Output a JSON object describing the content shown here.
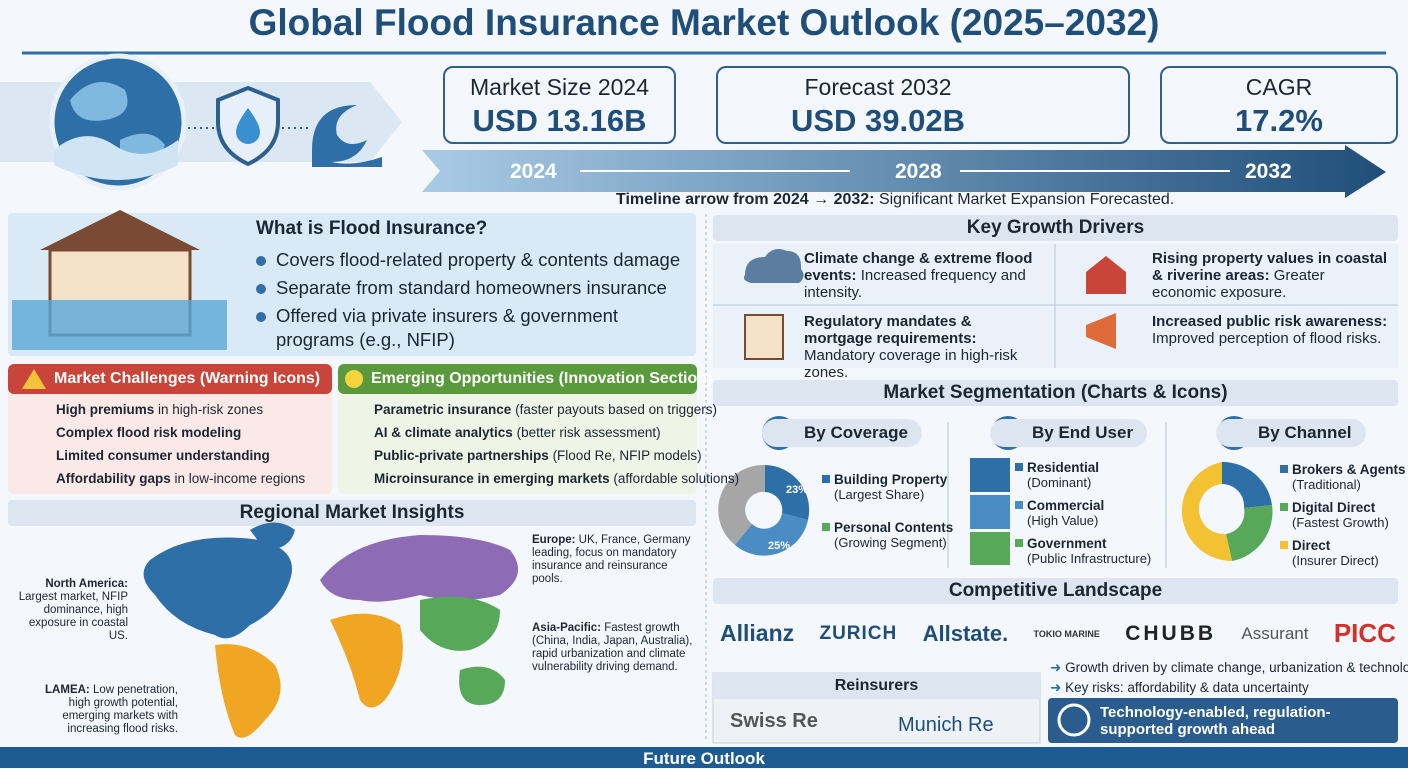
{
  "header": {
    "title": "Global Flood Insurance Market Outlook (2025–2032)"
  },
  "kpis": [
    {
      "label": "Market Size 2024",
      "value": "USD 13.16B"
    },
    {
      "label": "Forecast 2032",
      "value": "USD 39.02B"
    },
    {
      "label": "CAGR",
      "value": "17.2%"
    }
  ],
  "timeline": {
    "years": [
      "2024",
      "2028",
      "2032"
    ],
    "caption_bold": "Timeline arrow from 2024 → 2032:",
    "caption": "Significant Market Expansion Forecasted."
  },
  "definition": {
    "title": "What is Flood Insurance?",
    "bullets": [
      "Covers flood-related property & contents damage",
      "Separate from standard homeowners insurance",
      "Offered via private insurers & government programs (e.g., NFIP)"
    ]
  },
  "challenges": {
    "title": "Market Challenges (Warning Icons)",
    "items": [
      {
        "bold": "High premiums",
        "text": "in high-risk zones"
      },
      {
        "bold": "Complex flood risk modeling"
      },
      {
        "bold": "Limited consumer understanding"
      },
      {
        "bold": "Affordability gaps",
        "text": "in low-income regions"
      }
    ]
  },
  "opportunities": {
    "title": "Emerging Opportunities (Innovation Section)",
    "items": [
      {
        "bold": "Parametric insurance",
        "text": "(faster payouts based on triggers)"
      },
      {
        "bold": "AI & climate analytics",
        "text": "(better risk assessment)"
      },
      {
        "bold": "Public-private partnerships",
        "text": "(Flood Re, NFIP models)"
      },
      {
        "bold": "Microinsurance in emerging markets",
        "text": "(affordable solutions)"
      }
    ]
  },
  "regional": {
    "title": "Regional Market Insights",
    "regions": [
      {
        "name": "North America:",
        "text": "Largest market, NFIP dominance, high exposure in coastal US."
      },
      {
        "name": "Europe:",
        "text": "UK, France, Germany leading, focus on mandatory insurance and reinsurance pools."
      },
      {
        "name": "Asia-Pacific:",
        "text": "Fastest growth (China, India, Japan, Australia), rapid urbanization and climate vulnerability driving demand."
      },
      {
        "name": "LAMEA:",
        "text": "Low penetration, high growth potential, emerging markets with increasing flood risks."
      }
    ]
  },
  "drivers": {
    "title": "Key Growth Drivers",
    "items": [
      {
        "bold": "Climate change & extreme flood events:",
        "text": "Increased frequency and intensity."
      },
      {
        "bold": "Rising property values in coastal & riverine areas:",
        "text": "Greater economic exposure."
      },
      {
        "bold": "Regulatory mandates & mortgage requirements:",
        "text": "Mandatory coverage in high-risk zones."
      },
      {
        "bold": "Increased public risk awareness:",
        "text": "Improved perception of flood risks."
      }
    ]
  },
  "segmentation": {
    "title": "Market Segmentation (Charts & Icons)",
    "groups": [
      {
        "title": "By Coverage",
        "chart_labels": [
          "23%",
          "25%"
        ],
        "items": [
          {
            "name": "Building Property",
            "note": "(Largest Share)"
          },
          {
            "name": "Personal Contents",
            "note": "(Growing Segment)"
          }
        ]
      },
      {
        "title": "By End User",
        "items": [
          {
            "name": "Residential",
            "note": "(Dominant)"
          },
          {
            "name": "Commercial",
            "note": "(High Value)"
          },
          {
            "name": "Government",
            "note": "(Public Infrastructure)"
          }
        ]
      },
      {
        "title": "By Channel",
        "items": [
          {
            "name": "Brokers & Agents",
            "note": "(Traditional)"
          },
          {
            "name": "Digital Direct",
            "note": "(Fastest Growth)"
          },
          {
            "name": "Direct",
            "note": "(Insurer Direct)"
          }
        ]
      }
    ]
  },
  "competitive": {
    "title": "Competitive Landscape",
    "companies": [
      "Allianz",
      "ZURICH",
      "Allstate.",
      "TOKIO MARINE",
      "CHUBB",
      "Assurant",
      "PICC"
    ],
    "bullets": [
      "Growth driven by climate change, urbanization & technology",
      "Key risks: affordability & data uncertainty"
    ],
    "reinsurers_title": "Reinsurers",
    "reinsurers": [
      "Swiss Re",
      "Munich Re"
    ],
    "callout": "Technology-enabled, regulation-supported growth ahead"
  },
  "footer": {
    "title": "Future Outlook"
  }
}
